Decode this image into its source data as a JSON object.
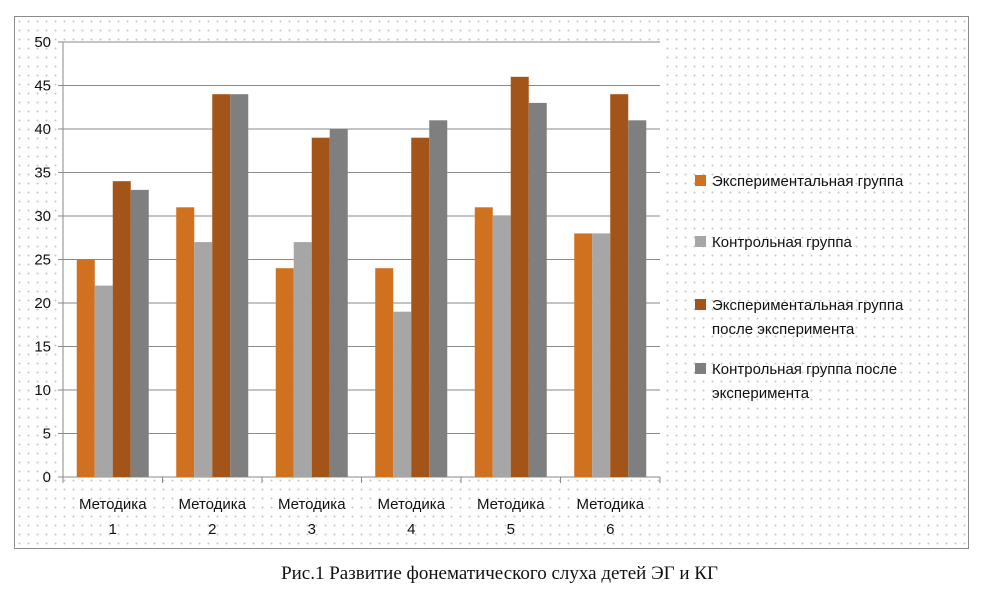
{
  "chart_data": {
    "type": "bar",
    "categories": [
      [
        "Методика",
        "1"
      ],
      [
        "Методика",
        "2"
      ],
      [
        "Методика",
        "3"
      ],
      [
        "Методика",
        "4"
      ],
      [
        "Методика",
        "5"
      ],
      [
        "Методика",
        "6"
      ]
    ],
    "series": [
      {
        "name": [
          "Экспериментальная группа"
        ],
        "color": "#d0711f",
        "values": [
          25,
          31,
          24,
          24,
          31,
          28
        ]
      },
      {
        "name": [
          "Контрольная группа"
        ],
        "color": "#a6a6a6",
        "values": [
          22,
          27,
          27,
          19,
          30,
          28
        ]
      },
      {
        "name": [
          "Экспериментальная группа",
          "после эксперимента"
        ],
        "color": "#a35418",
        "values": [
          34,
          44,
          39,
          39,
          46,
          44
        ]
      },
      {
        "name": [
          "Контрольная группа после",
          "эксперимента"
        ],
        "color": "#7f7f7f",
        "values": [
          33,
          44,
          40,
          41,
          43,
          41
        ]
      }
    ],
    "ylim": [
      0,
      50
    ],
    "yticks": [
      0,
      5,
      10,
      15,
      20,
      25,
      30,
      35,
      40,
      45,
      50
    ],
    "grid": true,
    "legend_position": "right"
  },
  "caption": "Рис.1   Развитие фонематического слуха детей ЭГ и КГ"
}
